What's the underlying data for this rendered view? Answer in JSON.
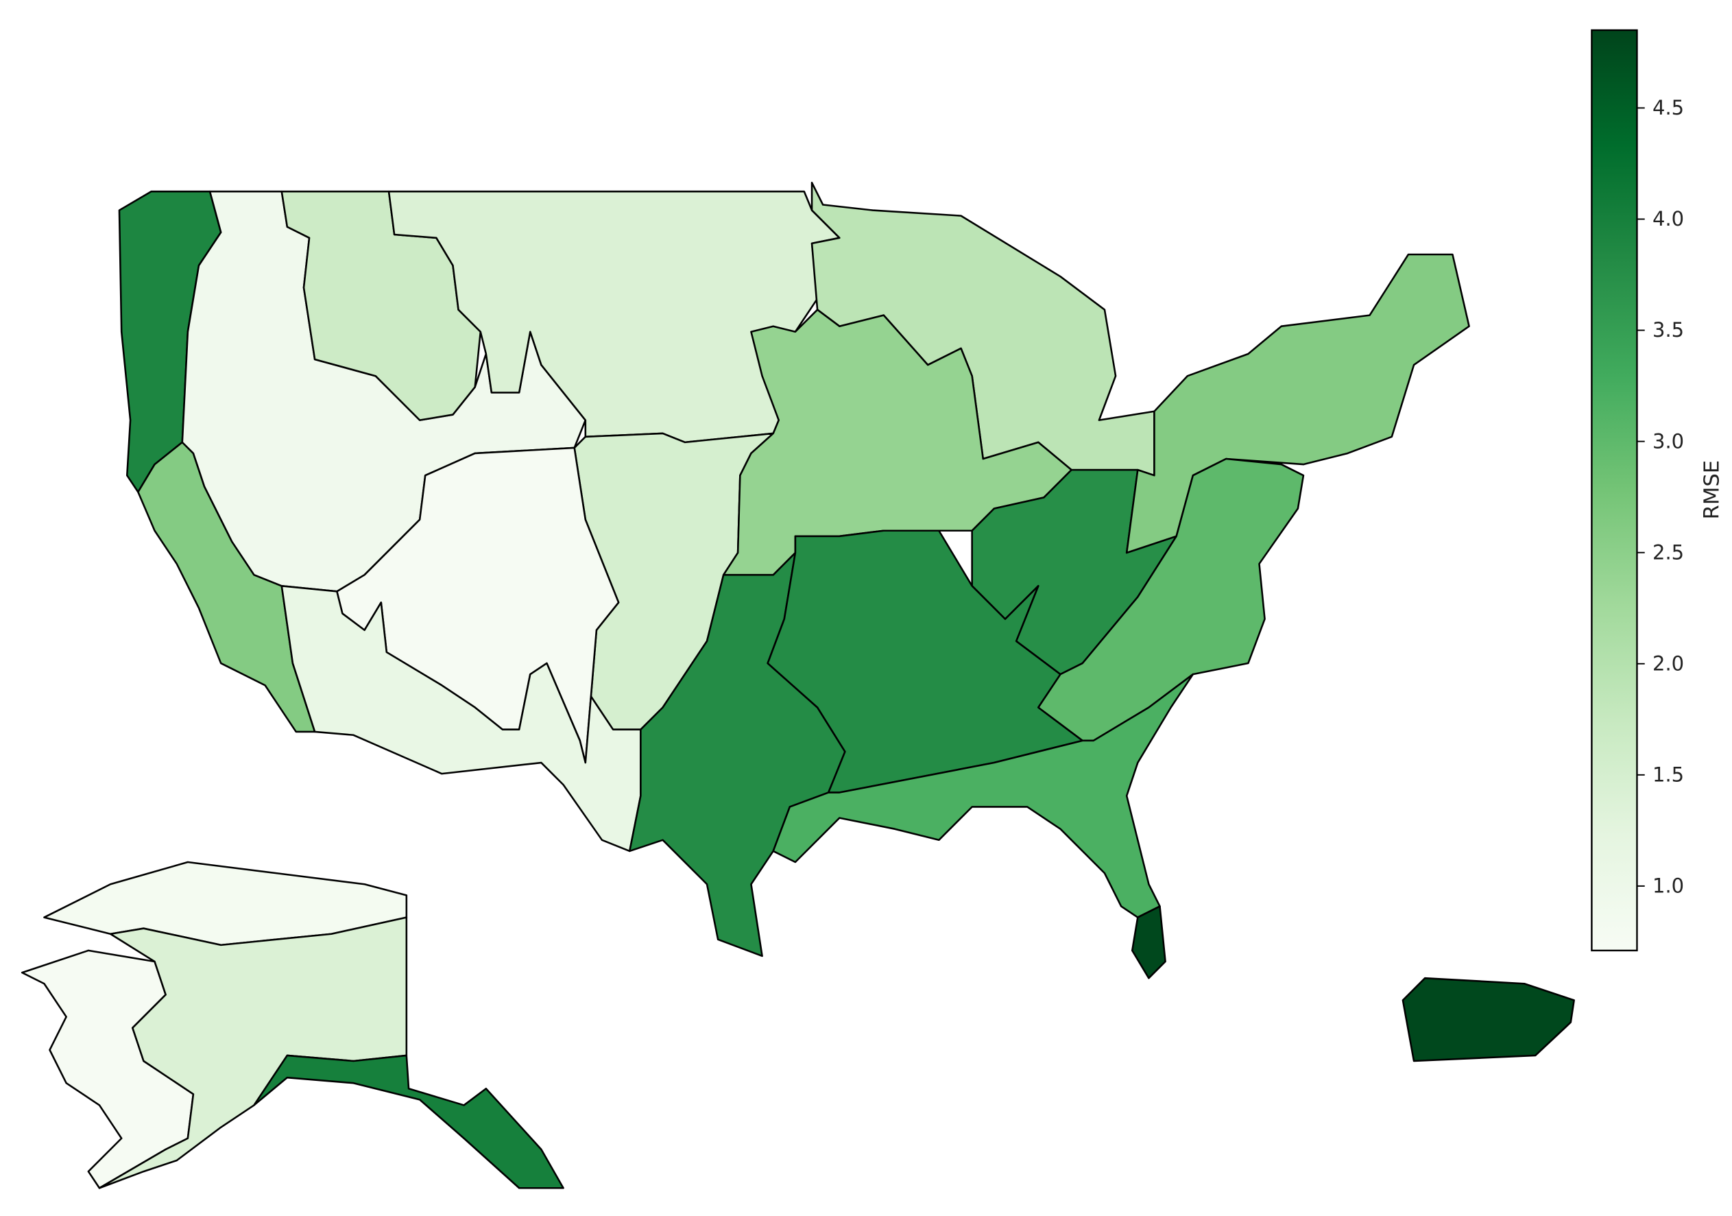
{
  "chart_data": {
    "type": "choropleth",
    "title": "",
    "colormap": "Greens",
    "colorbar": {
      "label": "RMSE",
      "range": [
        0.71,
        4.85
      ],
      "ticks": [
        "1.0",
        "1.5",
        "2.0",
        "2.5",
        "3.0",
        "3.5",
        "4.0",
        "4.5"
      ],
      "tick_values": [
        1.0,
        1.5,
        2.0,
        2.5,
        3.0,
        3.5,
        4.0,
        4.5
      ],
      "placement": "right"
    },
    "regions": [
      {
        "id": "pacific-northwest",
        "value": 3.9
      },
      {
        "id": "california",
        "value": 2.6
      },
      {
        "id": "great-basin",
        "value": 0.9
      },
      {
        "id": "northern-rockies",
        "value": 1.65
      },
      {
        "id": "northern-plains",
        "value": 1.4
      },
      {
        "id": "upper-midwest",
        "value": 1.9
      },
      {
        "id": "central-plains",
        "value": 1.5
      },
      {
        "id": "colorado-plateau",
        "value": 0.75
      },
      {
        "id": "southwest",
        "value": 1.1
      },
      {
        "id": "texas",
        "value": 3.8
      },
      {
        "id": "midwest",
        "value": 2.4
      },
      {
        "id": "ohio-valley",
        "value": 3.75
      },
      {
        "id": "tennessee-valley",
        "value": 3.8
      },
      {
        "id": "northeast",
        "value": 2.6
      },
      {
        "id": "mid-atlantic",
        "value": 3.0
      },
      {
        "id": "southeast",
        "value": 3.2
      },
      {
        "id": "south-florida",
        "value": 4.8
      },
      {
        "id": "puerto-rico",
        "value": 4.8
      },
      {
        "id": "alaska-north",
        "value": 0.8
      },
      {
        "id": "alaska-west",
        "value": 0.75
      },
      {
        "id": "alaska-interior",
        "value": 1.4
      },
      {
        "id": "alaska-south-coast",
        "value": 4.0
      }
    ]
  }
}
